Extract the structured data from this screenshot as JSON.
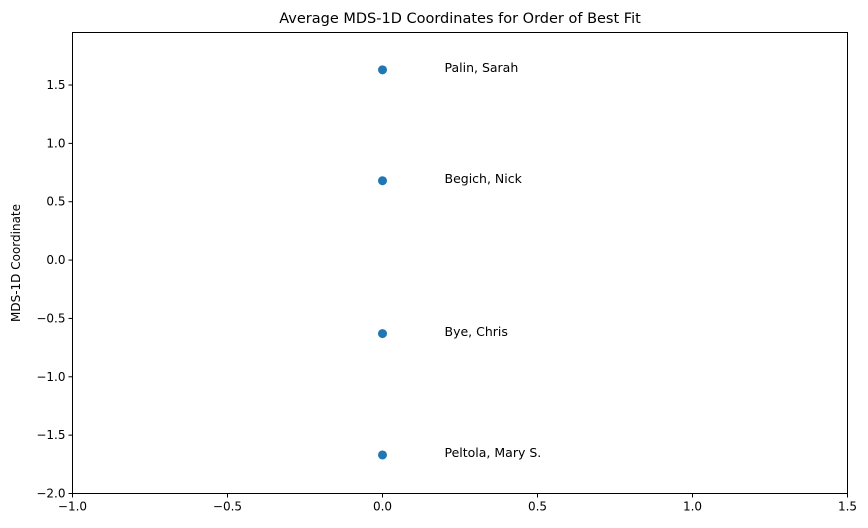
{
  "chart_data": {
    "type": "scatter",
    "title": "Average MDS-1D Coordinates for Order of Best Fit",
    "xlabel": "",
    "ylabel": "MDS-1D Coordinate",
    "xlim": [
      -1.0,
      1.5
    ],
    "ylim": [
      -2.0,
      1.95
    ],
    "xticks": [
      -1.0,
      -0.5,
      0.0,
      0.5,
      1.0,
      1.5
    ],
    "xtick_labels": [
      "−1.0",
      "−0.5",
      "0.0",
      "0.5",
      "1.0",
      "1.5"
    ],
    "yticks": [
      -2.0,
      -1.5,
      -1.0,
      -0.5,
      0.0,
      0.5,
      1.0,
      1.5
    ],
    "ytick_labels": [
      "−2.0",
      "−1.5",
      "−1.0",
      "−0.5",
      "0.0",
      "0.5",
      "1.0",
      "1.5"
    ],
    "grid": false,
    "marker_color": "#1f77b4",
    "points": [
      {
        "label": "Palin, Sarah",
        "x": 0.0,
        "y": 1.63,
        "label_x": 0.2,
        "label_y": 1.65
      },
      {
        "label": "Begich, Nick",
        "x": 0.0,
        "y": 0.68,
        "label_x": 0.2,
        "label_y": 0.7
      },
      {
        "label": "Bye, Chris",
        "x": 0.0,
        "y": -0.63,
        "label_x": 0.2,
        "label_y": -0.61
      },
      {
        "label": "Peltola, Mary S.",
        "x": 0.0,
        "y": -1.67,
        "label_x": 0.2,
        "label_y": -1.65
      }
    ]
  }
}
